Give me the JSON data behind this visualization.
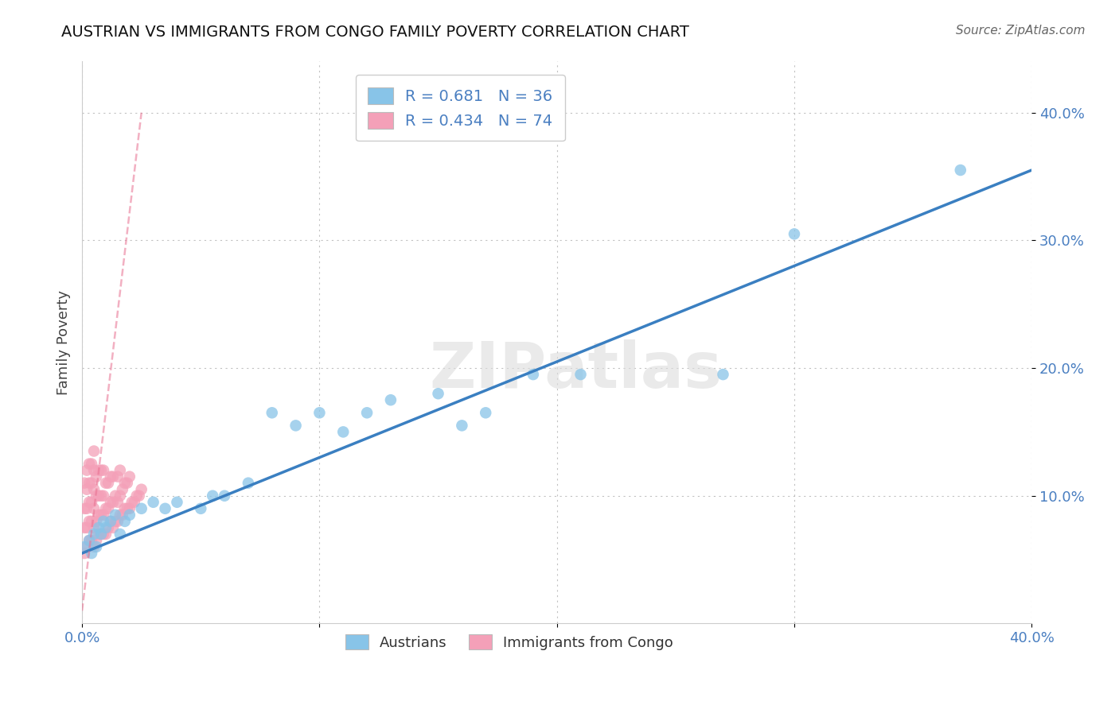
{
  "title": "AUSTRIAN VS IMMIGRANTS FROM CONGO FAMILY POVERTY CORRELATION CHART",
  "source": "Source: ZipAtlas.com",
  "ylabel": "Family Poverty",
  "xlabel": "",
  "xlim": [
    0.0,
    0.4
  ],
  "ylim": [
    0.0,
    0.44
  ],
  "xticks": [
    0.0,
    0.1,
    0.2,
    0.3,
    0.4
  ],
  "xtick_labels": [
    "0.0%",
    "",
    "",
    "",
    "40.0%"
  ],
  "yticks": [
    0.1,
    0.2,
    0.3,
    0.4
  ],
  "ytick_labels": [
    "10.0%",
    "20.0%",
    "30.0%",
    "40.0%"
  ],
  "blue_color": "#88c4e8",
  "pink_color": "#f4a0b8",
  "blue_line_color": "#3a7fc1",
  "pink_line_color": "#e87090",
  "R_blue": 0.681,
  "N_blue": 36,
  "R_pink": 0.434,
  "N_pink": 74,
  "watermark": "ZIPatlas",
  "legend_label_blue": "Austrians",
  "legend_label_pink": "Immigrants from Congo",
  "blue_x": [
    0.001,
    0.003,
    0.004,
    0.005,
    0.006,
    0.007,
    0.008,
    0.009,
    0.01,
    0.012,
    0.014,
    0.016,
    0.018,
    0.02,
    0.025,
    0.03,
    0.035,
    0.04,
    0.05,
    0.055,
    0.06,
    0.07,
    0.08,
    0.09,
    0.1,
    0.11,
    0.12,
    0.13,
    0.15,
    0.16,
    0.17,
    0.19,
    0.21,
    0.27,
    0.3,
    0.37
  ],
  "blue_y": [
    0.06,
    0.065,
    0.055,
    0.07,
    0.06,
    0.075,
    0.07,
    0.08,
    0.075,
    0.08,
    0.085,
    0.07,
    0.08,
    0.085,
    0.09,
    0.095,
    0.09,
    0.095,
    0.09,
    0.1,
    0.1,
    0.11,
    0.165,
    0.155,
    0.165,
    0.15,
    0.165,
    0.175,
    0.18,
    0.155,
    0.165,
    0.195,
    0.195,
    0.195,
    0.305,
    0.355
  ],
  "pink_x": [
    0.001,
    0.001,
    0.001,
    0.001,
    0.002,
    0.002,
    0.002,
    0.002,
    0.002,
    0.003,
    0.003,
    0.003,
    0.003,
    0.003,
    0.004,
    0.004,
    0.004,
    0.004,
    0.004,
    0.005,
    0.005,
    0.005,
    0.005,
    0.005,
    0.005,
    0.006,
    0.006,
    0.006,
    0.006,
    0.007,
    0.007,
    0.007,
    0.007,
    0.008,
    0.008,
    0.008,
    0.008,
    0.009,
    0.009,
    0.009,
    0.009,
    0.01,
    0.01,
    0.01,
    0.011,
    0.011,
    0.011,
    0.012,
    0.012,
    0.012,
    0.013,
    0.013,
    0.013,
    0.014,
    0.014,
    0.015,
    0.015,
    0.015,
    0.016,
    0.016,
    0.016,
    0.017,
    0.017,
    0.018,
    0.018,
    0.019,
    0.019,
    0.02,
    0.02,
    0.021,
    0.022,
    0.023,
    0.024,
    0.025
  ],
  "pink_y": [
    0.055,
    0.075,
    0.09,
    0.11,
    0.06,
    0.075,
    0.09,
    0.105,
    0.12,
    0.065,
    0.08,
    0.095,
    0.11,
    0.125,
    0.065,
    0.08,
    0.095,
    0.11,
    0.125,
    0.06,
    0.075,
    0.09,
    0.105,
    0.12,
    0.135,
    0.065,
    0.08,
    0.1,
    0.115,
    0.07,
    0.085,
    0.1,
    0.12,
    0.07,
    0.085,
    0.1,
    0.12,
    0.07,
    0.085,
    0.1,
    0.12,
    0.07,
    0.09,
    0.11,
    0.075,
    0.09,
    0.11,
    0.08,
    0.095,
    0.115,
    0.075,
    0.095,
    0.115,
    0.08,
    0.1,
    0.08,
    0.095,
    0.115,
    0.085,
    0.1,
    0.12,
    0.085,
    0.105,
    0.09,
    0.11,
    0.09,
    0.11,
    0.09,
    0.115,
    0.095,
    0.095,
    0.1,
    0.1,
    0.105
  ],
  "pink_line_x0": 0.0,
  "pink_line_x1": 0.025,
  "pink_line_y0": 0.01,
  "pink_line_y1": 0.4,
  "blue_line_x0": 0.0,
  "blue_line_x1": 0.4,
  "blue_line_y0": 0.055,
  "blue_line_y1": 0.355
}
